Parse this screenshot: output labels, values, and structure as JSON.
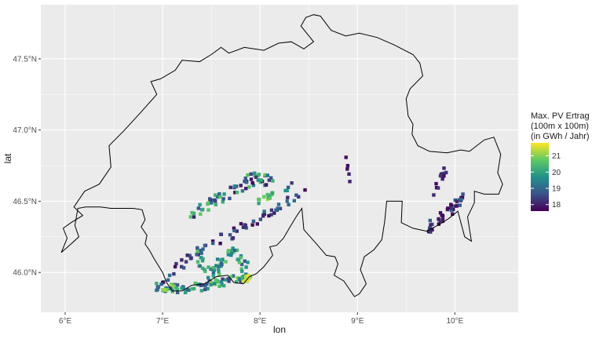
{
  "chart_data": {
    "type": "heatmap",
    "xlabel": "lon",
    "ylabel": "lat",
    "xlim": [
      5.75,
      10.65
    ],
    "ylim": [
      45.72,
      47.88
    ],
    "x_ticks": [
      {
        "value": 6,
        "label": "6°E"
      },
      {
        "value": 7,
        "label": "7°E"
      },
      {
        "value": 8,
        "label": "8°E"
      },
      {
        "value": 9,
        "label": "9°E"
      },
      {
        "value": 10,
        "label": "10°E"
      }
    ],
    "y_ticks": [
      {
        "value": 46.0,
        "label": "46.0°N"
      },
      {
        "value": 46.5,
        "label": "46.5°N"
      },
      {
        "value": 47.0,
        "label": "47.0°N"
      },
      {
        "value": 47.5,
        "label": "47.5°N"
      }
    ],
    "grid": true,
    "panel_background": "#ebebeb",
    "legend": {
      "title_lines": [
        "Max. PV Ertrag",
        "(100m x 100m)",
        "(in GWh / Jahr)"
      ],
      "placement": "right",
      "min": 17.6,
      "max": 21.8,
      "ticks": [
        {
          "value": 18,
          "label": "18"
        },
        {
          "value": 19,
          "label": "19"
        },
        {
          "value": 20,
          "label": "20"
        },
        {
          "value": 21,
          "label": "21"
        }
      ],
      "palette": [
        "#440154",
        "#3b528b",
        "#21918c",
        "#5ec962",
        "#fde725"
      ]
    },
    "border": [
      [
        5.96,
        46.14
      ],
      [
        6.06,
        46.2
      ],
      [
        6.14,
        46.25
      ],
      [
        6.1,
        46.33
      ],
      [
        6.13,
        46.45
      ],
      [
        6.21,
        46.46
      ],
      [
        6.36,
        46.46
      ],
      [
        6.47,
        46.45
      ],
      [
        6.59,
        46.45
      ],
      [
        6.7,
        46.45
      ],
      [
        6.79,
        46.44
      ],
      [
        6.82,
        46.37
      ],
      [
        6.78,
        46.32
      ],
      [
        6.84,
        46.26
      ],
      [
        6.82,
        46.2
      ],
      [
        6.87,
        46.15
      ],
      [
        6.91,
        46.1
      ],
      [
        7.0,
        46.0
      ],
      [
        7.04,
        45.93
      ],
      [
        7.1,
        45.87
      ],
      [
        7.2,
        45.87
      ],
      [
        7.3,
        45.91
      ],
      [
        7.43,
        45.92
      ],
      [
        7.55,
        45.97
      ],
      [
        7.67,
        45.98
      ],
      [
        7.73,
        45.93
      ],
      [
        7.83,
        45.92
      ],
      [
        7.89,
        45.97
      ],
      [
        7.96,
        45.99
      ],
      [
        8.04,
        46.04
      ],
      [
        8.13,
        46.12
      ],
      [
        8.1,
        46.18
      ],
      [
        8.17,
        46.19
      ],
      [
        8.24,
        46.24
      ],
      [
        8.3,
        46.31
      ],
      [
        8.37,
        46.39
      ],
      [
        8.43,
        46.45
      ],
      [
        8.45,
        46.3
      ],
      [
        8.58,
        46.2
      ],
      [
        8.68,
        46.12
      ],
      [
        8.77,
        46.11
      ],
      [
        8.8,
        46.06
      ],
      [
        8.76,
        45.98
      ],
      [
        8.86,
        45.94
      ],
      [
        8.92,
        45.88
      ],
      [
        8.97,
        45.83
      ],
      [
        9.02,
        45.85
      ],
      [
        9.09,
        45.92
      ],
      [
        9.03,
        46.02
      ],
      [
        9.07,
        46.11
      ],
      [
        9.17,
        46.16
      ],
      [
        9.25,
        46.23
      ],
      [
        9.28,
        46.36
      ],
      [
        9.3,
        46.5
      ],
      [
        9.37,
        46.5
      ],
      [
        9.46,
        46.5
      ],
      [
        9.45,
        46.35
      ],
      [
        9.57,
        46.31
      ],
      [
        9.71,
        46.29
      ],
      [
        9.85,
        46.34
      ],
      [
        9.94,
        46.38
      ],
      [
        10.03,
        46.43
      ],
      [
        10.1,
        46.25
      ],
      [
        10.17,
        46.22
      ],
      [
        10.13,
        46.39
      ],
      [
        10.2,
        46.49
      ],
      [
        10.2,
        46.57
      ],
      [
        10.3,
        46.55
      ],
      [
        10.45,
        46.55
      ],
      [
        10.49,
        46.62
      ],
      [
        10.44,
        46.7
      ],
      [
        10.47,
        46.83
      ],
      [
        10.4,
        46.95
      ],
      [
        10.3,
        46.93
      ],
      [
        10.15,
        46.85
      ],
      [
        10.06,
        46.86
      ],
      [
        9.92,
        46.84
      ],
      [
        9.74,
        46.85
      ],
      [
        9.62,
        46.89
      ],
      [
        9.56,
        46.97
      ],
      [
        9.57,
        47.04
      ],
      [
        9.52,
        47.1
      ],
      [
        9.5,
        47.22
      ],
      [
        9.54,
        47.29
      ],
      [
        9.67,
        47.38
      ],
      [
        9.64,
        47.47
      ],
      [
        9.57,
        47.53
      ],
      [
        9.37,
        47.6
      ],
      [
        9.2,
        47.65
      ],
      [
        9.02,
        47.68
      ],
      [
        8.88,
        47.66
      ],
      [
        8.73,
        47.7
      ],
      [
        8.62,
        47.8
      ],
      [
        8.55,
        47.81
      ],
      [
        8.47,
        47.79
      ],
      [
        8.42,
        47.73
      ],
      [
        8.55,
        47.62
      ],
      [
        8.45,
        47.57
      ],
      [
        8.32,
        47.62
      ],
      [
        8.19,
        47.61
      ],
      [
        8.04,
        47.56
      ],
      [
        7.84,
        47.58
      ],
      [
        7.68,
        47.54
      ],
      [
        7.6,
        47.58
      ],
      [
        7.5,
        47.53
      ],
      [
        7.38,
        47.48
      ],
      [
        7.2,
        47.49
      ],
      [
        7.13,
        47.42
      ],
      [
        6.98,
        47.36
      ],
      [
        6.88,
        47.34
      ],
      [
        6.94,
        47.25
      ],
      [
        6.77,
        47.12
      ],
      [
        6.61,
        47.0
      ],
      [
        6.45,
        46.89
      ],
      [
        6.47,
        46.74
      ],
      [
        6.35,
        46.62
      ],
      [
        6.2,
        46.57
      ],
      [
        6.09,
        46.46
      ],
      [
        6.18,
        46.4
      ],
      [
        6.06,
        46.35
      ],
      [
        5.98,
        46.31
      ],
      [
        6.02,
        46.24
      ],
      [
        5.96,
        46.14
      ]
    ],
    "clusters": [
      {
        "name": "upper-valais-band",
        "points": [
          [
            7.25,
            46.38
          ],
          [
            7.95,
            46.67
          ],
          [
            8.36,
            46.6
          ]
        ],
        "width": 0.09,
        "n": 70,
        "color_range": [
          17.6,
          20.8
        ]
      },
      {
        "name": "upper-valais-core",
        "points": [
          [
            7.95,
            46.49
          ],
          [
            8.12,
            46.55
          ]
        ],
        "width": 0.05,
        "n": 14,
        "color_range": [
          19.8,
          21.2
        ]
      },
      {
        "name": "lower-valais-band",
        "points": [
          [
            7.0,
            45.93
          ],
          [
            7.3,
            46.12
          ],
          [
            8.06,
            46.4
          ],
          [
            8.45,
            46.56
          ]
        ],
        "width": 0.06,
        "n": 65,
        "color_range": [
          17.6,
          19.2
        ]
      },
      {
        "name": "southern-ridge",
        "points": [
          [
            6.95,
            45.9
          ],
          [
            7.25,
            45.88
          ],
          [
            7.75,
            45.95
          ],
          [
            7.9,
            45.97
          ]
        ],
        "width": 0.06,
        "n": 90,
        "color_range": [
          18.4,
          21.2
        ]
      },
      {
        "name": "southern-side-valleys",
        "points": [
          [
            7.35,
            46.12
          ],
          [
            7.5,
            45.98
          ],
          [
            7.75,
            46.18
          ],
          [
            7.85,
            46.02
          ]
        ],
        "width": 0.08,
        "n": 55,
        "color_range": [
          18.8,
          20.9
        ]
      },
      {
        "name": "hotspot",
        "points": [
          [
            7.82,
            45.93
          ],
          [
            7.9,
            45.98
          ]
        ],
        "width": 0.03,
        "n": 8,
        "color_range": [
          21.2,
          21.8
        ]
      },
      {
        "name": "engadin",
        "points": [
          [
            9.7,
            46.3
          ],
          [
            9.95,
            46.43
          ],
          [
            10.08,
            46.53
          ]
        ],
        "width": 0.06,
        "n": 40,
        "color_range": [
          17.6,
          19.0
        ]
      },
      {
        "name": "engadin-upper",
        "points": [
          [
            9.75,
            46.5
          ],
          [
            9.92,
            46.73
          ]
        ],
        "width": 0.05,
        "n": 12,
        "color_range": [
          17.6,
          18.4
        ]
      },
      {
        "name": "ticino",
        "points": [
          [
            8.88,
            46.83
          ],
          [
            8.92,
            46.63
          ]
        ],
        "width": 0.015,
        "n": 5,
        "color_range": [
          17.6,
          18.2
        ]
      }
    ]
  }
}
